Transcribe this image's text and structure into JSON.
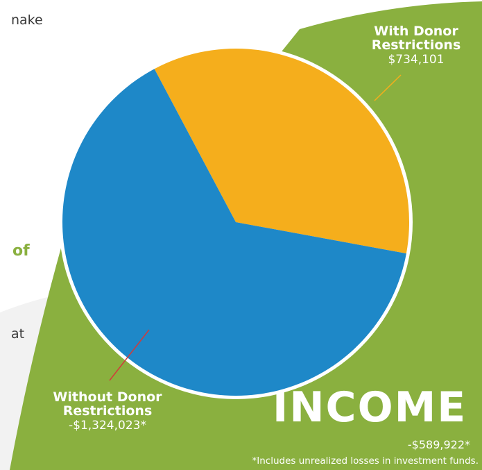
{
  "page": {
    "text_fragments": [
      "nake",
      "of",
      "at"
    ]
  },
  "colors": {
    "background_shape": "#8ab03f",
    "pale_shape": "#f2f2f2",
    "with_restrictions": "#f5ae1c",
    "without_restrictions": "#1e88c8",
    "ring": "#ffffff",
    "leader_with": "#f5ae1c",
    "leader_without": "#d23a3a"
  },
  "chart_data": {
    "type": "pie",
    "title": "INCOME",
    "total_label": "-$589,922*",
    "footnote": "*Includes unrealized losses in investment funds.",
    "slices": [
      {
        "name": "With Donor Restrictions",
        "value_label": "$734,101",
        "value": 734101,
        "color": "#f5ae1c"
      },
      {
        "name": "Without Donor Restrictions",
        "value_label": "-$1,324,023*",
        "value": -1324023,
        "color": "#1e88c8"
      }
    ]
  }
}
